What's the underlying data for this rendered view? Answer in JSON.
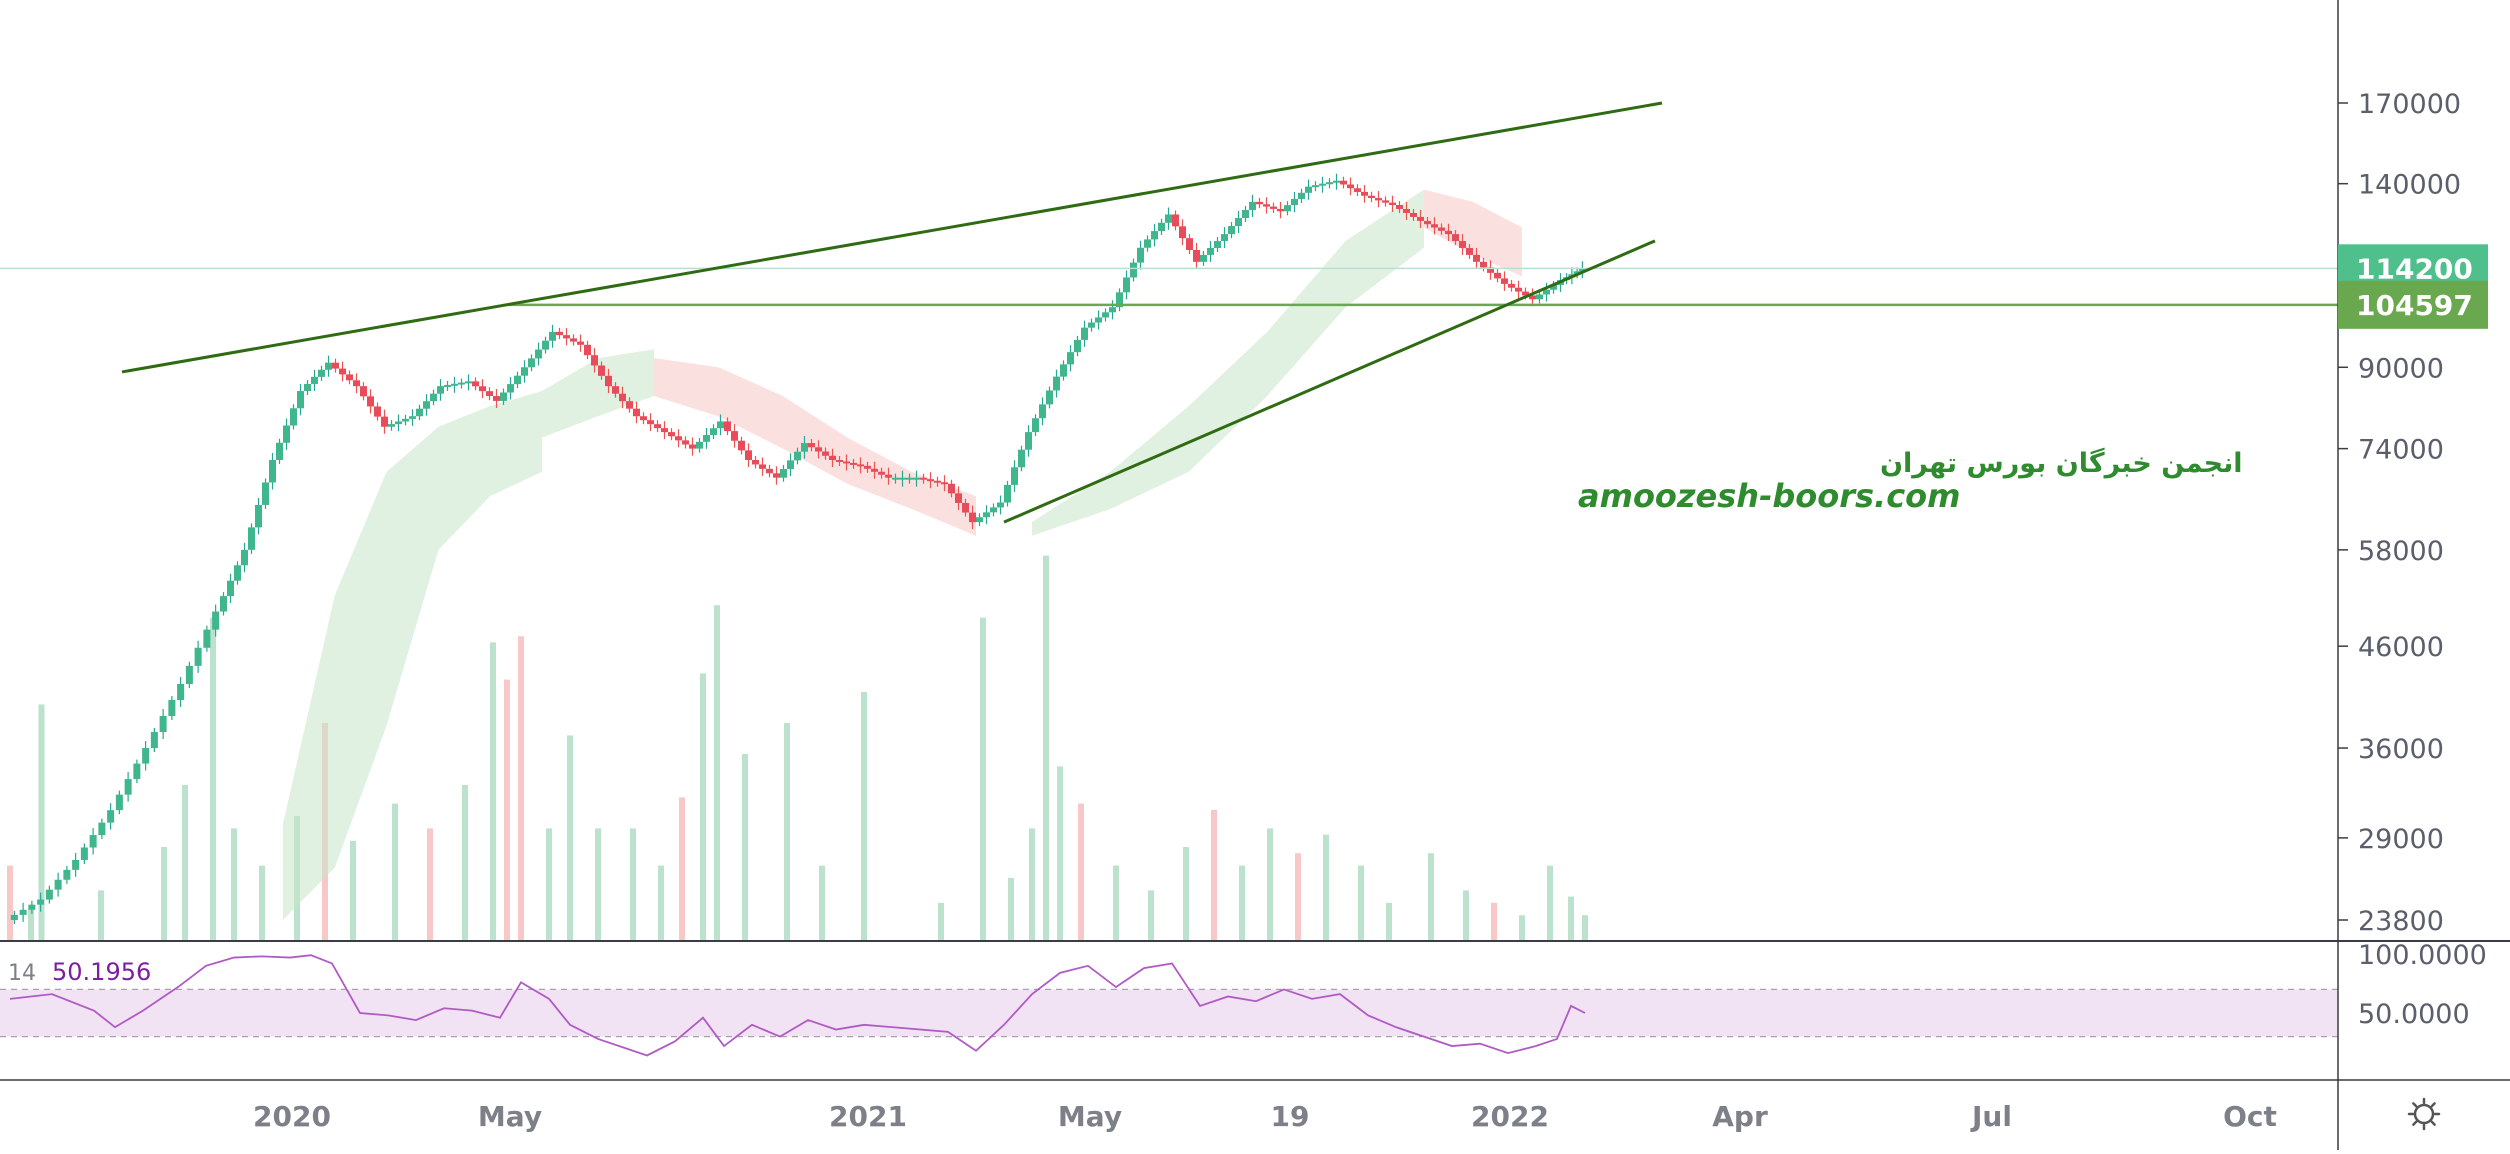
{
  "chart_data": {
    "type": "candlestick",
    "price_axis": {
      "ticks": [
        "170000",
        "140000",
        "114200",
        "90000",
        "74000",
        "58000",
        "46000",
        "36000",
        "29000",
        "23800"
      ],
      "scale": "log"
    },
    "time_axis": {
      "labels": [
        "2020",
        "May",
        "2021",
        "May",
        "19",
        "2022",
        "Apr",
        "Jul",
        "Oct"
      ]
    },
    "price_labels": {
      "last_price": "114200",
      "last_price_color": "#4fbf8c",
      "horizontal_level": "104597",
      "horizontal_level_color": "#6aa84f"
    },
    "price_series": [
      {
        "t": 0.0,
        "p": 23800
      },
      {
        "t": 0.5,
        "p": 25000
      },
      {
        "t": 1.0,
        "p": 27500
      },
      {
        "t": 1.5,
        "p": 31000
      },
      {
        "t": 2.0,
        "p": 36000
      },
      {
        "t": 2.5,
        "p": 42000
      },
      {
        "t": 3.0,
        "p": 50000
      },
      {
        "t": 3.4,
        "p": 58000
      },
      {
        "t": 3.8,
        "p": 72000
      },
      {
        "t": 4.2,
        "p": 85000
      },
      {
        "t": 4.6,
        "p": 91000
      },
      {
        "t": 5.0,
        "p": 86000
      },
      {
        "t": 5.4,
        "p": 78000
      },
      {
        "t": 5.8,
        "p": 80000
      },
      {
        "t": 6.2,
        "p": 86000
      },
      {
        "t": 6.6,
        "p": 87000
      },
      {
        "t": 7.0,
        "p": 83000
      },
      {
        "t": 7.4,
        "p": 90000
      },
      {
        "t": 7.8,
        "p": 98000
      },
      {
        "t": 8.2,
        "p": 95000
      },
      {
        "t": 8.6,
        "p": 86000
      },
      {
        "t": 9.0,
        "p": 80000
      },
      {
        "t": 9.4,
        "p": 77000
      },
      {
        "t": 9.8,
        "p": 74000
      },
      {
        "t": 10.2,
        "p": 79000
      },
      {
        "t": 10.6,
        "p": 72000
      },
      {
        "t": 11.0,
        "p": 69000
      },
      {
        "t": 11.4,
        "p": 75000
      },
      {
        "t": 11.8,
        "p": 72000
      },
      {
        "t": 12.2,
        "p": 71000
      },
      {
        "t": 12.6,
        "p": 69000
      },
      {
        "t": 13.0,
        "p": 69000
      },
      {
        "t": 13.4,
        "p": 68000
      },
      {
        "t": 13.8,
        "p": 62000
      },
      {
        "t": 14.2,
        "p": 65000
      },
      {
        "t": 14.6,
        "p": 77000
      },
      {
        "t": 15.0,
        "p": 88000
      },
      {
        "t": 15.4,
        "p": 99000
      },
      {
        "t": 15.8,
        "p": 104000
      },
      {
        "t": 16.2,
        "p": 120000
      },
      {
        "t": 16.6,
        "p": 130000
      },
      {
        "t": 17.0,
        "p": 116000
      },
      {
        "t": 17.4,
        "p": 124000
      },
      {
        "t": 17.8,
        "p": 134000
      },
      {
        "t": 18.2,
        "p": 131000
      },
      {
        "t": 18.6,
        "p": 139000
      },
      {
        "t": 19.0,
        "p": 141000
      },
      {
        "t": 19.4,
        "p": 136000
      },
      {
        "t": 19.8,
        "p": 133000
      },
      {
        "t": 20.2,
        "p": 128000
      },
      {
        "t": 20.6,
        "p": 124000
      },
      {
        "t": 21.0,
        "p": 116000
      },
      {
        "t": 21.4,
        "p": 110000
      },
      {
        "t": 21.8,
        "p": 106000
      },
      {
        "t": 22.2,
        "p": 111000
      },
      {
        "t": 22.5,
        "p": 114200
      }
    ],
    "volume_series": [
      {
        "t": 0.0,
        "v": 0.12,
        "up": false
      },
      {
        "t": 0.3,
        "v": 0.05,
        "up": true
      },
      {
        "t": 0.45,
        "v": 0.38,
        "up": true
      },
      {
        "t": 1.3,
        "v": 0.08,
        "up": true
      },
      {
        "t": 2.2,
        "v": 0.15,
        "up": true
      },
      {
        "t": 2.5,
        "v": 0.25,
        "up": true
      },
      {
        "t": 2.9,
        "v": 0.52,
        "up": true
      },
      {
        "t": 3.2,
        "v": 0.18,
        "up": true
      },
      {
        "t": 3.6,
        "v": 0.12,
        "up": true
      },
      {
        "t": 4.1,
        "v": 0.2,
        "up": true
      },
      {
        "t": 4.5,
        "v": 0.35,
        "up": false
      },
      {
        "t": 4.9,
        "v": 0.16,
        "up": true
      },
      {
        "t": 5.5,
        "v": 0.22,
        "up": true
      },
      {
        "t": 6.0,
        "v": 0.18,
        "up": false
      },
      {
        "t": 6.5,
        "v": 0.25,
        "up": true
      },
      {
        "t": 6.9,
        "v": 0.48,
        "up": true
      },
      {
        "t": 7.1,
        "v": 0.42,
        "up": false
      },
      {
        "t": 7.3,
        "v": 0.49,
        "up": false
      },
      {
        "t": 7.7,
        "v": 0.18,
        "up": true
      },
      {
        "t": 8.0,
        "v": 0.33,
        "up": true
      },
      {
        "t": 8.4,
        "v": 0.18,
        "up": true
      },
      {
        "t": 8.9,
        "v": 0.18,
        "up": true
      },
      {
        "t": 9.3,
        "v": 0.12,
        "up": true
      },
      {
        "t": 9.6,
        "v": 0.23,
        "up": false
      },
      {
        "t": 9.9,
        "v": 0.43,
        "up": true
      },
      {
        "t": 10.1,
        "v": 0.54,
        "up": true
      },
      {
        "t": 10.5,
        "v": 0.3,
        "up": true
      },
      {
        "t": 11.1,
        "v": 0.35,
        "up": true
      },
      {
        "t": 11.6,
        "v": 0.12,
        "up": true
      },
      {
        "t": 12.2,
        "v": 0.4,
        "up": true
      },
      {
        "t": 13.3,
        "v": 0.06,
        "up": true
      },
      {
        "t": 13.9,
        "v": 0.52,
        "up": true
      },
      {
        "t": 14.3,
        "v": 0.1,
        "up": true
      },
      {
        "t": 14.6,
        "v": 0.18,
        "up": true
      },
      {
        "t": 14.8,
        "v": 0.62,
        "up": true
      },
      {
        "t": 15.0,
        "v": 0.28,
        "up": true
      },
      {
        "t": 15.3,
        "v": 0.22,
        "up": false
      },
      {
        "t": 15.8,
        "v": 0.12,
        "up": true
      },
      {
        "t": 16.3,
        "v": 0.08,
        "up": true
      },
      {
        "t": 16.8,
        "v": 0.15,
        "up": true
      },
      {
        "t": 17.2,
        "v": 0.21,
        "up": false
      },
      {
        "t": 17.6,
        "v": 0.12,
        "up": true
      },
      {
        "t": 18.0,
        "v": 0.18,
        "up": true
      },
      {
        "t": 18.4,
        "v": 0.14,
        "up": false
      },
      {
        "t": 18.8,
        "v": 0.17,
        "up": true
      },
      {
        "t": 19.3,
        "v": 0.12,
        "up": true
      },
      {
        "t": 19.7,
        "v": 0.06,
        "up": true
      },
      {
        "t": 20.3,
        "v": 0.14,
        "up": true
      },
      {
        "t": 20.8,
        "v": 0.08,
        "up": true
      },
      {
        "t": 21.2,
        "v": 0.06,
        "up": false
      },
      {
        "t": 21.6,
        "v": 0.04,
        "up": true
      },
      {
        "t": 22.0,
        "v": 0.12,
        "up": true
      },
      {
        "t": 22.3,
        "v": 0.07,
        "up": true
      },
      {
        "t": 22.5,
        "v": 0.04,
        "up": true
      }
    ],
    "ichimoku_cloud": {
      "bullish_color": "#c8e6c9",
      "bearish_color": "#f8c6c6",
      "segments": [
        {
          "from_t": 3.9,
          "to_t": 7.6,
          "bullish": true,
          "top": [
            30000,
            52000,
            70000,
            78000,
            82000,
            85000
          ],
          "bottom": [
            23800,
            27000,
            38000,
            58000,
            66000,
            70000
          ]
        },
        {
          "from_t": 7.6,
          "to_t": 9.2,
          "bullish": true,
          "top": [
            85000,
            92000,
            94000
          ],
          "bottom": [
            76000,
            80000,
            84000
          ]
        },
        {
          "from_t": 9.2,
          "to_t": 13.8,
          "bullish": false,
          "top": [
            92000,
            90000,
            84000,
            76000,
            70000,
            66000
          ],
          "bottom": [
            84000,
            80000,
            74000,
            68000,
            64000,
            60000
          ]
        },
        {
          "from_t": 14.6,
          "to_t": 20.2,
          "bullish": true,
          "top": [
            62000,
            70000,
            82000,
            98000,
            122000,
            138000
          ],
          "bottom": [
            60000,
            64000,
            70000,
            84000,
            104000,
            120000
          ]
        },
        {
          "from_t": 20.2,
          "to_t": 21.6,
          "bullish": false,
          "top": [
            138000,
            134000,
            126000
          ],
          "bottom": [
            126000,
            118000,
            112000
          ]
        }
      ]
    },
    "trendlines": [
      {
        "from_t": 1.6,
        "from_p": 89000,
        "to_t": 23.6,
        "to_p": 170000,
        "color": "#2e6b12"
      },
      {
        "from_t": 14.2,
        "from_p": 62000,
        "to_t": 23.5,
        "to_p": 122000,
        "color": "#2e6b12"
      }
    ],
    "rsi": {
      "length": "14",
      "value": "50.1956",
      "color": "#b05bc3",
      "band_upper": 70,
      "band_lower": 30,
      "ticks": [
        "100.0000",
        "50.0000"
      ],
      "series": [
        [
          0.0,
          62
        ],
        [
          0.6,
          66
        ],
        [
          1.2,
          52
        ],
        [
          1.5,
          38
        ],
        [
          1.9,
          52
        ],
        [
          2.4,
          72
        ],
        [
          2.8,
          90
        ],
        [
          3.2,
          97
        ],
        [
          3.6,
          98
        ],
        [
          4.0,
          97
        ],
        [
          4.3,
          99
        ],
        [
          4.6,
          92
        ],
        [
          5.0,
          50
        ],
        [
          5.4,
          48
        ],
        [
          5.8,
          44
        ],
        [
          6.2,
          54
        ],
        [
          6.6,
          52
        ],
        [
          7.0,
          46
        ],
        [
          7.3,
          76
        ],
        [
          7.7,
          62
        ],
        [
          8.0,
          40
        ],
        [
          8.4,
          28
        ],
        [
          8.8,
          20
        ],
        [
          9.1,
          14
        ],
        [
          9.5,
          26
        ],
        [
          9.9,
          46
        ],
        [
          10.2,
          22
        ],
        [
          10.6,
          40
        ],
        [
          11.0,
          30
        ],
        [
          11.4,
          44
        ],
        [
          11.8,
          36
        ],
        [
          12.2,
          40
        ],
        [
          12.6,
          38
        ],
        [
          13.0,
          36
        ],
        [
          13.4,
          34
        ],
        [
          13.8,
          18
        ],
        [
          14.2,
          40
        ],
        [
          14.6,
          66
        ],
        [
          15.0,
          84
        ],
        [
          15.4,
          90
        ],
        [
          15.8,
          72
        ],
        [
          16.2,
          88
        ],
        [
          16.6,
          92
        ],
        [
          17.0,
          56
        ],
        [
          17.4,
          64
        ],
        [
          17.8,
          60
        ],
        [
          18.2,
          70
        ],
        [
          18.6,
          62
        ],
        [
          19.0,
          66
        ],
        [
          19.4,
          48
        ],
        [
          19.8,
          38
        ],
        [
          20.2,
          30
        ],
        [
          20.6,
          22
        ],
        [
          21.0,
          24
        ],
        [
          21.4,
          16
        ],
        [
          21.8,
          22
        ],
        [
          22.1,
          28
        ],
        [
          22.3,
          56
        ],
        [
          22.5,
          50
        ]
      ]
    },
    "watermark": {
      "line1": "انجمن خبرگان بورس تهران",
      "line2": "amoozesh-boors.com"
    }
  }
}
